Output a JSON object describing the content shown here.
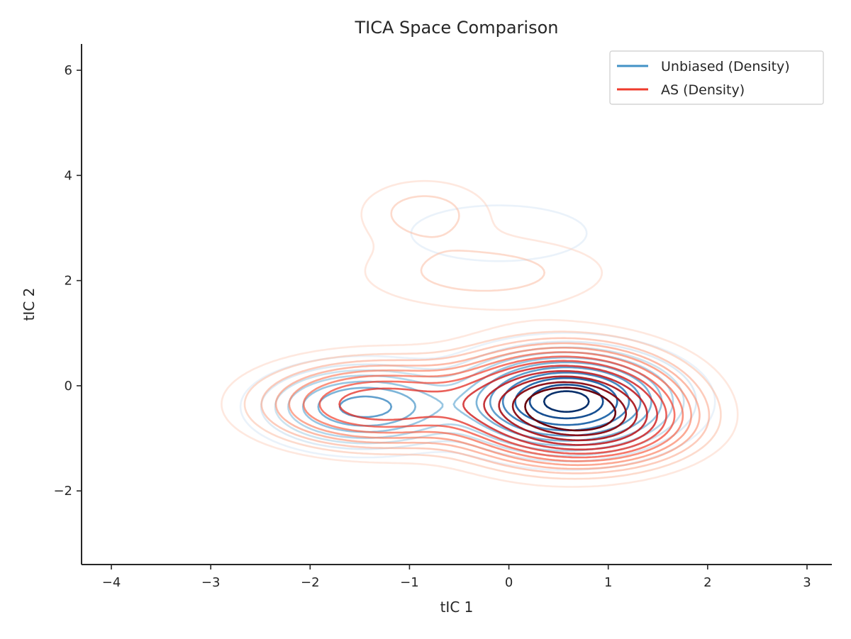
{
  "chart_data": {
    "type": "contour",
    "title": "TICA Space Comparison",
    "xlabel": "tIC 1",
    "ylabel": "tIC 2",
    "xlim": [
      -4.3,
      3.25
    ],
    "ylim": [
      -3.4,
      6.5
    ],
    "x_ticks": [
      -4,
      -3,
      -2,
      -1,
      0,
      1,
      2,
      3
    ],
    "y_ticks": [
      -2,
      0,
      2,
      4,
      6
    ],
    "x_tick_labels": [
      "−4",
      "−3",
      "−2",
      "−1",
      "0",
      "1",
      "2",
      "3"
    ],
    "y_tick_labels": [
      "−2",
      "0",
      "2",
      "4",
      "6"
    ],
    "grid": false,
    "legend_position": "top-right",
    "series": [
      {
        "name": "Unbiased (Density)",
        "color": "#4292c6",
        "colormap": "Blues",
        "components": [
          {
            "x": 0.58,
            "y": -0.3,
            "sx": 0.55,
            "sy": 0.48,
            "w": 1.0
          },
          {
            "x": -1.45,
            "y": -0.4,
            "sx": 0.52,
            "sy": 0.4,
            "w": 0.45
          },
          {
            "x": -0.1,
            "y": 2.9,
            "sx": 0.75,
            "sy": 0.45,
            "w": 0.05
          }
        ],
        "levels": [
          0.025,
          0.06,
          0.1,
          0.15,
          0.22,
          0.3,
          0.4,
          0.52,
          0.65,
          0.8,
          0.92
        ]
      },
      {
        "name": "AS (Density)",
        "color": "#ef3b2c",
        "colormap": "Reds",
        "components": [
          {
            "x": 0.55,
            "y": -0.35,
            "sx": 0.6,
            "sy": 0.55,
            "w": 1.0
          },
          {
            "x": -1.3,
            "y": -0.35,
            "sx": 0.65,
            "sy": 0.45,
            "w": 0.4
          },
          {
            "x": 0.95,
            "y": -0.75,
            "sx": 0.5,
            "sy": 0.4,
            "w": 0.3
          },
          {
            "x": -0.85,
            "y": 3.3,
            "sx": 0.42,
            "sy": 0.4,
            "w": 0.06
          },
          {
            "x": -0.25,
            "y": 2.15,
            "sx": 0.8,
            "sy": 0.45,
            "w": 0.06
          }
        ],
        "levels": [
          0.02,
          0.045,
          0.075,
          0.11,
          0.15,
          0.2,
          0.26,
          0.33,
          0.42,
          0.53,
          0.65,
          0.78,
          0.9
        ]
      }
    ]
  }
}
